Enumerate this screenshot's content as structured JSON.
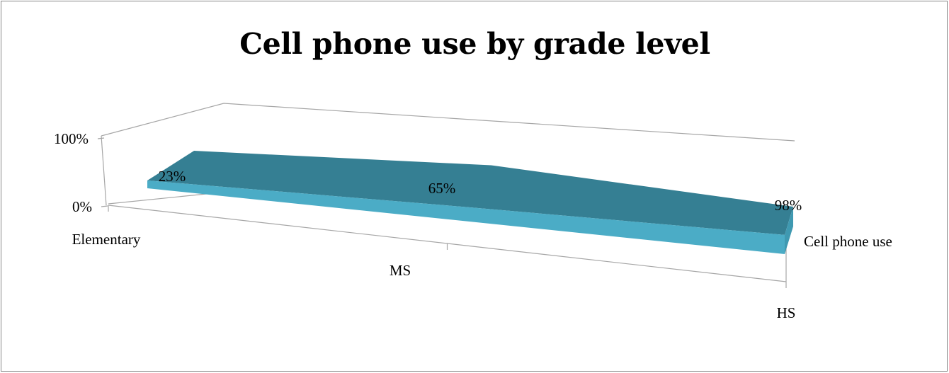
{
  "chart_data": {
    "type": "area",
    "title": "Cell phone use by grade level",
    "categories": [
      "Elementary",
      "MS",
      "HS"
    ],
    "series": [
      {
        "name": "Cell phone use",
        "values": [
          0.23,
          0.65,
          0.98
        ],
        "labels": [
          "23%",
          "65%",
          "98%"
        ]
      }
    ],
    "y_ticks": [
      "0%",
      "100%"
    ],
    "ylim": [
      0,
      1
    ],
    "grid": false,
    "style": "3d",
    "colors": {
      "front": "#4bacc6",
      "top": "#357f93",
      "end": "#3f99b1",
      "axis": "#a6a6a6"
    }
  }
}
